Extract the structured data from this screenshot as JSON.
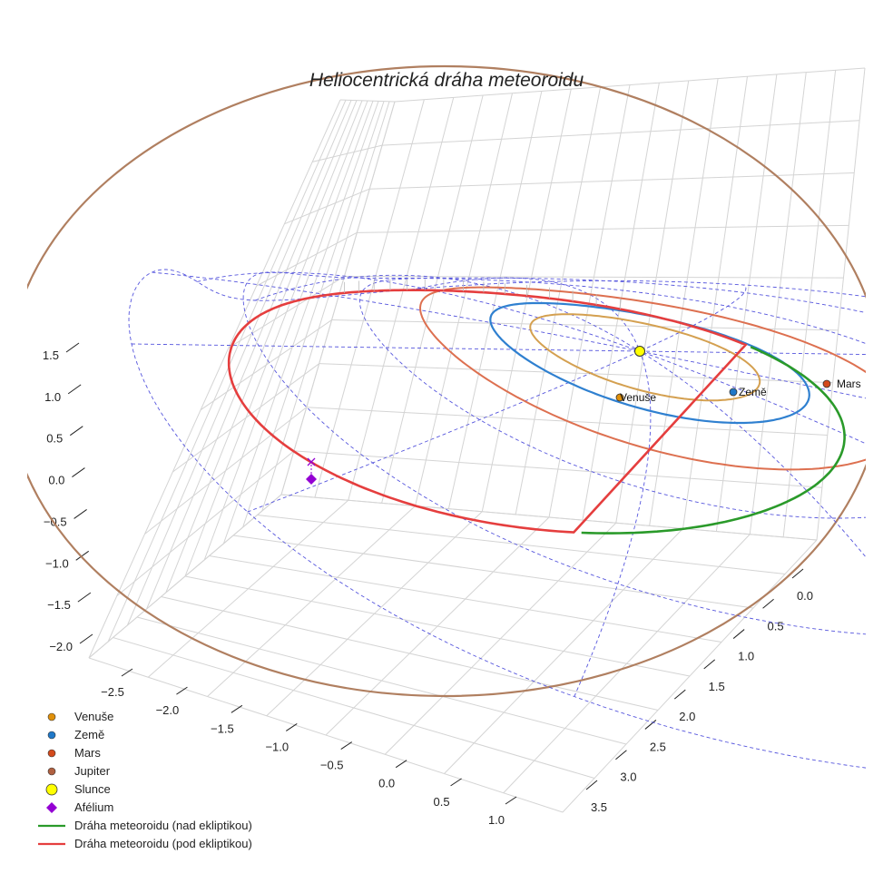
{
  "chart_data": {
    "type": "line3d",
    "title": "Heliocentrická dráha meteoroidu",
    "axes": {
      "x_ticks": [
        "−2.5",
        "−2.0",
        "−1.5",
        "−1.0",
        "−0.5",
        "0.0",
        "0.5",
        "1.0"
      ],
      "y_ticks": [
        "0.0",
        "0.5",
        "1.0",
        "1.5",
        "2.0",
        "2.5",
        "3.0",
        "3.5"
      ],
      "z_ticks": [
        "1.5",
        "1.0",
        "0.5",
        "0.0",
        "−0.5",
        "−1.0",
        "−1.5",
        "−2.0"
      ],
      "xlim": [
        -2.8,
        1.2
      ],
      "ylim": [
        -0.2,
        3.8
      ],
      "zlim": [
        -2.2,
        1.9
      ]
    },
    "ecliptic_grid": {
      "ring_radii_au": [
        1.0,
        2.0,
        3.0,
        4.0
      ],
      "spoke_count": 12,
      "color": "#5555dd"
    },
    "planet_orbits": [
      {
        "name": "Venuše",
        "radius_au": 0.72,
        "color": "#d4a050"
      },
      {
        "name": "Země",
        "radius_au": 1.0,
        "color": "#2f80d0"
      },
      {
        "name": "Mars",
        "radius_au": 1.52,
        "color": "#dd7050"
      },
      {
        "name": "Jupiter",
        "radius_au": 5.2,
        "color": "#b07f60"
      }
    ],
    "planets": [
      {
        "name": "Venuše",
        "label": "Venuše",
        "x": 0.12,
        "y": 0.7,
        "color": "#e0900a"
      },
      {
        "name": "Země",
        "label": "Země",
        "x": 0.95,
        "y": -0.3,
        "color": "#1f78c8"
      },
      {
        "name": "Mars",
        "label": "Mars",
        "x": 1.48,
        "y": -0.35,
        "color": "#d34a1c"
      }
    ],
    "sun": {
      "label": "Slunce",
      "x": 0,
      "y": 0,
      "z": 0,
      "color": "#ffff00"
    },
    "meteoroid_orbit": {
      "perihelion_au": 0.97,
      "aphelion_au": 3.33,
      "aphelion_z_au": -0.27,
      "above_color": "#2a9a2a",
      "below_color": "#e53e3e"
    },
    "aphelion_marker": {
      "label": "Afélium",
      "color": "#9400d3"
    },
    "legend": [
      {
        "label": "Venuše",
        "kind": "dot",
        "color": "#e0900a"
      },
      {
        "label": "Země",
        "kind": "dot",
        "color": "#1f78c8"
      },
      {
        "label": "Mars",
        "kind": "dot",
        "color": "#d34a1c"
      },
      {
        "label": "Jupiter",
        "kind": "dot",
        "color": "#b06040"
      },
      {
        "label": "Slunce",
        "kind": "sun",
        "color": "#ffff00"
      },
      {
        "label": "Afélium",
        "kind": "diamond",
        "color": "#9400d3"
      },
      {
        "label": "Dráha meteoroidu (nad ekliptikou)",
        "kind": "line",
        "color": "#2a9a2a"
      },
      {
        "label": "Dráha meteoroidu (pod ekliptikou)",
        "kind": "line",
        "color": "#e53e3e"
      }
    ]
  }
}
